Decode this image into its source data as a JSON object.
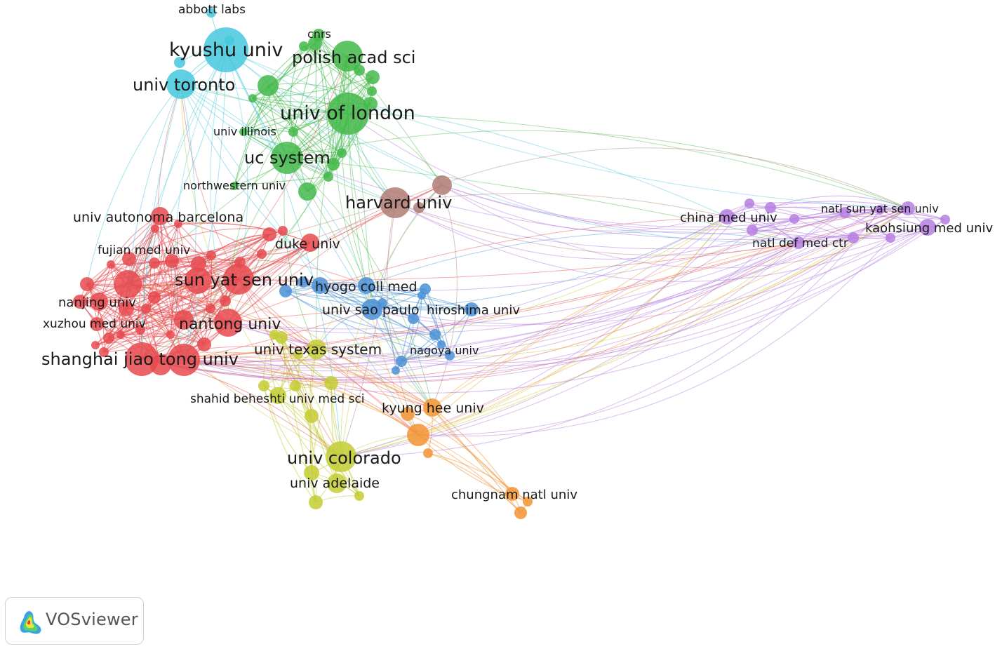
{
  "app": {
    "name": "VOSviewer"
  },
  "colors": {
    "red": "#e6494e",
    "green": "#44b84a",
    "blue": "#4a90d6",
    "yellow": "#c3cc34",
    "purple": "#b57ee0",
    "cyan": "#46c8de",
    "orange": "#f29433",
    "brown": "#b07c74"
  },
  "labels": [
    {
      "text": "abbott labs",
      "cluster": "cyan"
    },
    {
      "text": "kyushu univ",
      "cluster": "cyan"
    },
    {
      "text": "univ toronto",
      "cluster": "cyan"
    },
    {
      "text": "cnrs",
      "cluster": "green"
    },
    {
      "text": "polish acad sci",
      "cluster": "green"
    },
    {
      "text": "univ of london",
      "cluster": "green"
    },
    {
      "text": "univ illinois",
      "cluster": "green"
    },
    {
      "text": "uc system",
      "cluster": "green"
    },
    {
      "text": "northwestern univ",
      "cluster": "green"
    },
    {
      "text": "harvard univ",
      "cluster": "brown"
    },
    {
      "text": "univ autonoma barcelona",
      "cluster": "red"
    },
    {
      "text": "duke univ",
      "cluster": "red"
    },
    {
      "text": "fujian med univ",
      "cluster": "red"
    },
    {
      "text": "sun yat sen univ",
      "cluster": "red"
    },
    {
      "text": "nanjing univ",
      "cluster": "red"
    },
    {
      "text": "xuzhou med univ",
      "cluster": "red"
    },
    {
      "text": "nantong univ",
      "cluster": "red"
    },
    {
      "text": "shanghai jiao tong univ",
      "cluster": "red"
    },
    {
      "text": "hyogo coll med",
      "cluster": "blue"
    },
    {
      "text": "univ sao paulo",
      "cluster": "blue"
    },
    {
      "text": "hiroshima univ",
      "cluster": "blue"
    },
    {
      "text": "nagoya univ",
      "cluster": "blue"
    },
    {
      "text": "univ texas system",
      "cluster": "yellow"
    },
    {
      "text": "shahid beheshti univ med sci",
      "cluster": "yellow"
    },
    {
      "text": "univ colorado",
      "cluster": "yellow"
    },
    {
      "text": "univ adelaide",
      "cluster": "yellow"
    },
    {
      "text": "kyung hee univ",
      "cluster": "orange"
    },
    {
      "text": "chungnam natl univ",
      "cluster": "orange"
    },
    {
      "text": "china med univ",
      "cluster": "purple"
    },
    {
      "text": "natl sun yat sen univ",
      "cluster": "purple"
    },
    {
      "text": "kaohsiung med univ",
      "cluster": "purple"
    },
    {
      "text": "natl def med ctr",
      "cluster": "purple"
    }
  ]
}
